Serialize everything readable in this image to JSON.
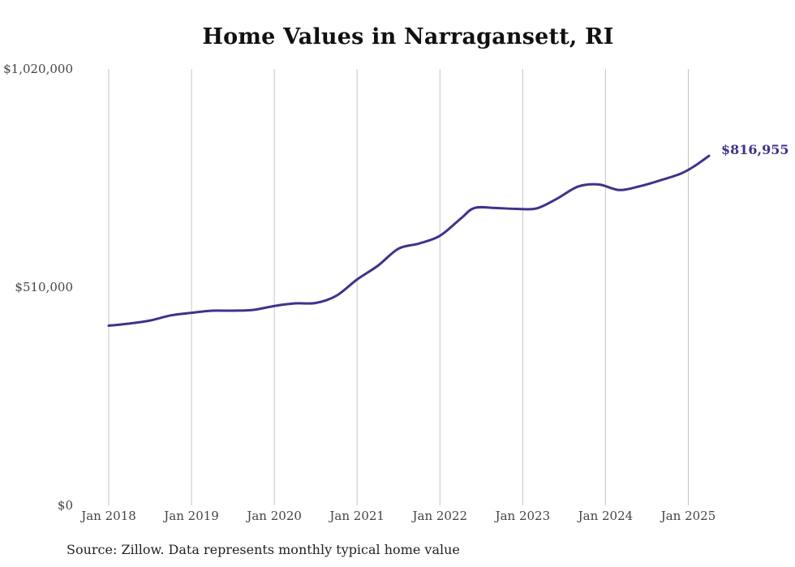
{
  "chart_data": {
    "type": "line",
    "title": "Home Values in Narragansett, RI",
    "xlabel": "",
    "ylabel": "",
    "ylim": [
      0,
      1020000
    ],
    "xlim": [
      "2018-01",
      "2025-04"
    ],
    "y_ticks": [
      "$0",
      "$510,000",
      "$1,020,000"
    ],
    "y_tick_values": [
      0,
      510000,
      1020000
    ],
    "x_ticks": [
      "Jan 2018",
      "Jan 2019",
      "Jan 2020",
      "Jan 2021",
      "Jan 2022",
      "Jan 2023",
      "Jan 2024",
      "Jan 2025"
    ],
    "x_tick_values": [
      "2018-01",
      "2019-01",
      "2020-01",
      "2021-01",
      "2022-01",
      "2023-01",
      "2024-01",
      "2025-01"
    ],
    "grid": "vertical",
    "line_color": "#3d348b",
    "end_label": "$816,955",
    "series": [
      {
        "values": [
          [
            "2018-01",
            420000
          ],
          [
            "2018-04",
            425000
          ],
          [
            "2018-07",
            432000
          ],
          [
            "2018-10",
            444000
          ],
          [
            "2019-01",
            450000
          ],
          [
            "2019-04",
            455000
          ],
          [
            "2019-07",
            455000
          ],
          [
            "2019-10",
            457000
          ],
          [
            "2020-01",
            466000
          ],
          [
            "2020-04",
            472000
          ],
          [
            "2020-07",
            473000
          ],
          [
            "2020-10",
            490000
          ],
          [
            "2021-01",
            528000
          ],
          [
            "2021-04",
            560000
          ],
          [
            "2021-07",
            600000
          ],
          [
            "2021-10",
            612000
          ],
          [
            "2022-01",
            630000
          ],
          [
            "2022-04",
            670000
          ],
          [
            "2022-06",
            695000
          ],
          [
            "2022-09",
            695000
          ],
          [
            "2022-12",
            693000
          ],
          [
            "2023-03",
            694000
          ],
          [
            "2023-06",
            717000
          ],
          [
            "2023-09",
            745000
          ],
          [
            "2023-12",
            750000
          ],
          [
            "2024-03",
            737000
          ],
          [
            "2024-06",
            746000
          ],
          [
            "2024-09",
            760000
          ],
          [
            "2024-12",
            776000
          ],
          [
            "2025-02",
            794000
          ],
          [
            "2025-04",
            816955
          ]
        ]
      }
    ],
    "source": "Source: Zillow. Data represents monthly typical home value"
  }
}
